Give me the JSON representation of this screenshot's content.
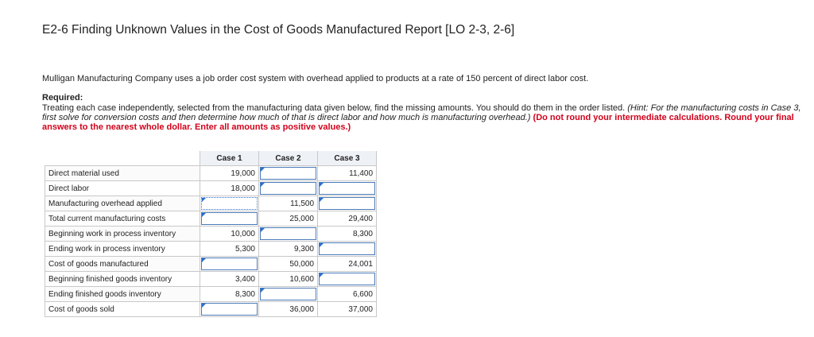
{
  "title": "E2-6 Finding Unknown Values in the Cost of Goods Manufactured Report [LO 2-3, 2-6]",
  "intro": "Mulligan Manufacturing Company uses a job order cost system with overhead applied to products at a rate of 150 percent of direct labor cost.",
  "required": {
    "heading": "Required:",
    "text_plain": "Treating each case independently, selected from the manufacturing data given below, find the missing amounts. You should do them in the order listed. ",
    "text_hint": "(Hint: For the manufacturing costs in Case 3, first solve for conversion costs and then determine how much of that is direct labor and how much is manufacturing overhead.)",
    "text_red": " (Do not round your intermediate calculations. Round your final answers to the nearest whole dollar. Enter all amounts as positive values.)"
  },
  "table": {
    "columns": [
      "Case 1",
      "Case 2",
      "Case 3"
    ],
    "rows": [
      {
        "label": "Direct material used",
        "c1": "19,000",
        "c2": "",
        "c3": "11,400"
      },
      {
        "label": "Direct labor",
        "c1": "18,000",
        "c2": "",
        "c3": ""
      },
      {
        "label": "Manufacturing overhead applied",
        "c1": "",
        "c2": "11,500",
        "c3": ""
      },
      {
        "label": "Total current manufacturing costs",
        "c1": "",
        "c2": "25,000",
        "c3": "29,400"
      },
      {
        "label": "Beginning work in process inventory",
        "c1": "10,000",
        "c2": "",
        "c3": "8,300"
      },
      {
        "label": "Ending work in process inventory",
        "c1": "5,300",
        "c2": "9,300",
        "c3": ""
      },
      {
        "label": "Cost of goods manufactured",
        "c1": "",
        "c2": "50,000",
        "c3": "24,001"
      },
      {
        "label": "Beginning finished goods inventory",
        "c1": "3,400",
        "c2": "10,600",
        "c3": ""
      },
      {
        "label": "Ending finished goods inventory",
        "c1": "8,300",
        "c2": "",
        "c3": "6,600"
      },
      {
        "label": "Cost of goods sold",
        "c1": "",
        "c2": "36,000",
        "c3": "37,000"
      }
    ]
  }
}
